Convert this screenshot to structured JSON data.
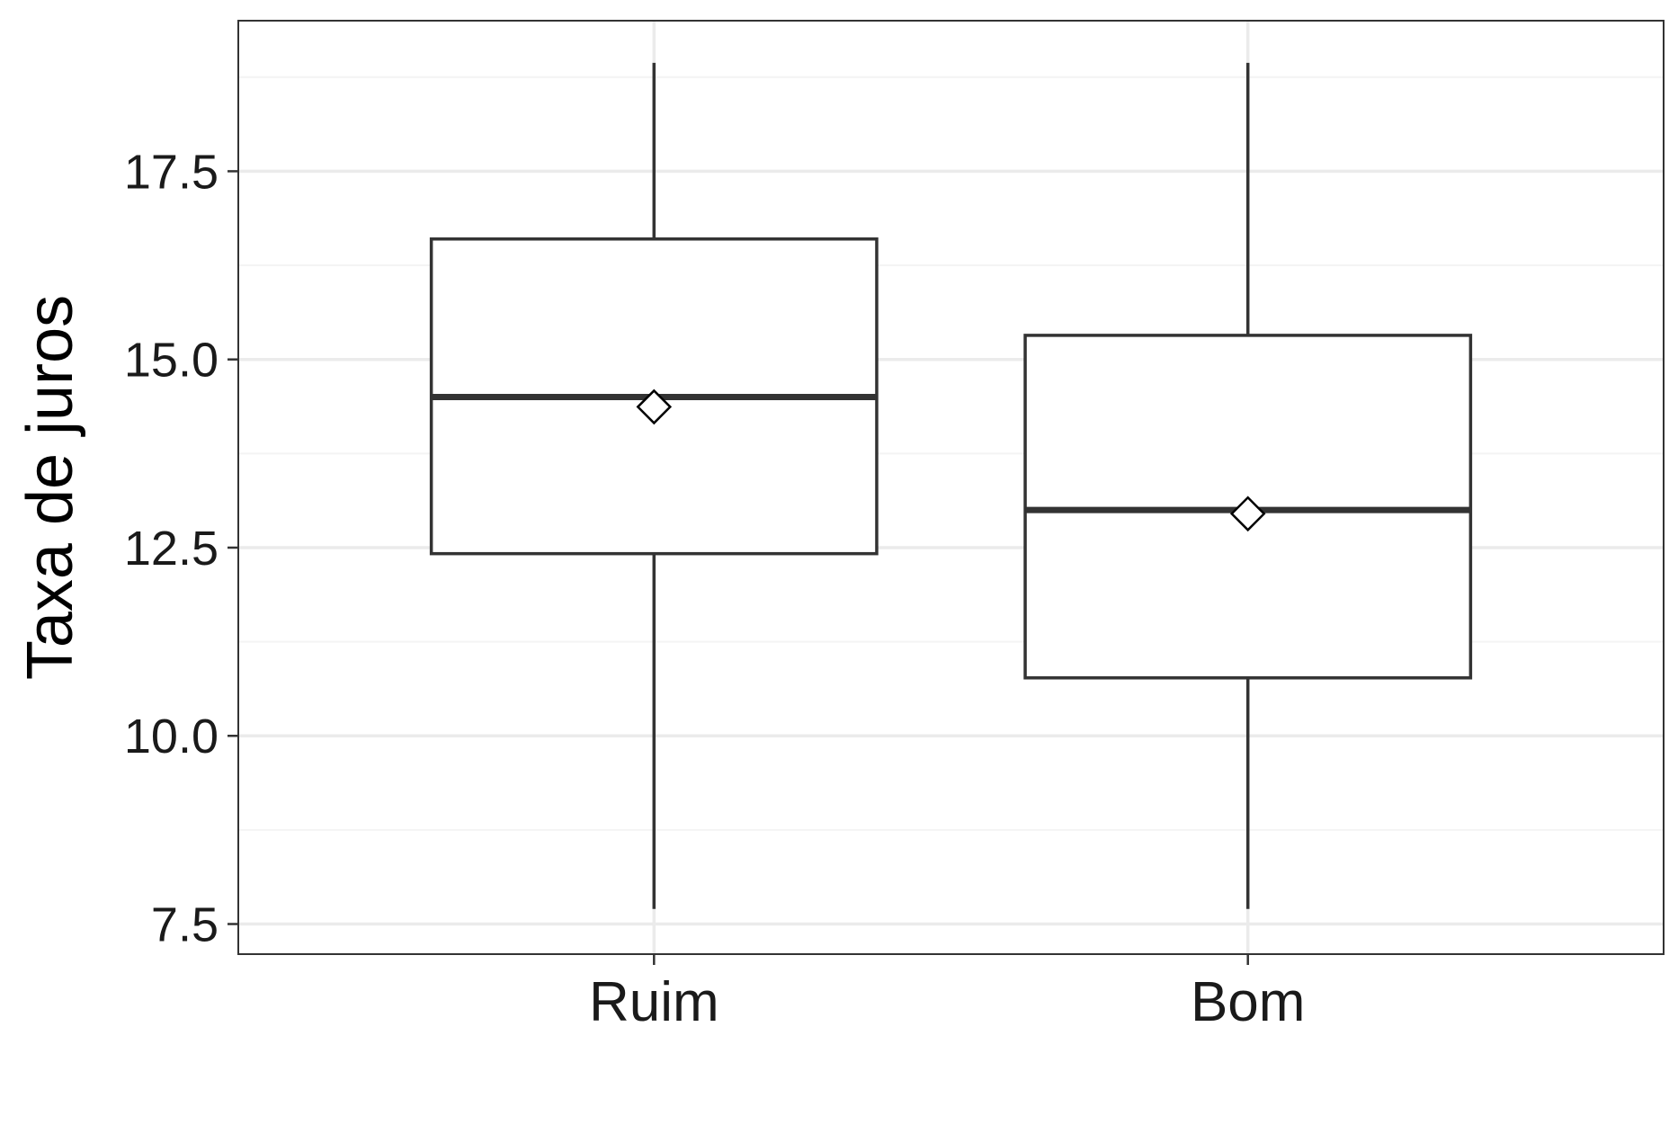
{
  "chart_data": {
    "type": "boxplot",
    "title": "",
    "xlabel": "",
    "ylabel": "Taxa de juros",
    "ylim": [
      7.1,
      19.5
    ],
    "yticks": [
      7.5,
      10.0,
      12.5,
      15.0,
      17.5
    ],
    "yticks_minor": [
      8.75,
      11.25,
      13.75,
      16.25,
      18.75
    ],
    "ytick_labels": [
      "7.5",
      "10.0",
      "12.5",
      "15.0",
      "17.5"
    ],
    "categories": [
      "Ruim",
      "Bom"
    ],
    "grid": true,
    "legend": "none",
    "boxes": [
      {
        "category": "Ruim",
        "whisker_low": 7.7,
        "q1": 12.42,
        "median": 14.5,
        "q3": 16.6,
        "whisker_high": 18.94,
        "mean": 14.37
      },
      {
        "category": "Bom",
        "whisker_low": 7.7,
        "q1": 10.77,
        "median": 13.0,
        "q3": 15.32,
        "whisker_high": 18.94,
        "mean": 12.95
      }
    ],
    "colors": {
      "box_stroke": "#333333",
      "box_fill": "#ffffff",
      "grid_major": "#ebebeb",
      "grid_minor": "#f4f4f4",
      "panel_border": "#333333",
      "mean_marker_fill": "#ffffff",
      "mean_marker_stroke": "#000000"
    }
  }
}
